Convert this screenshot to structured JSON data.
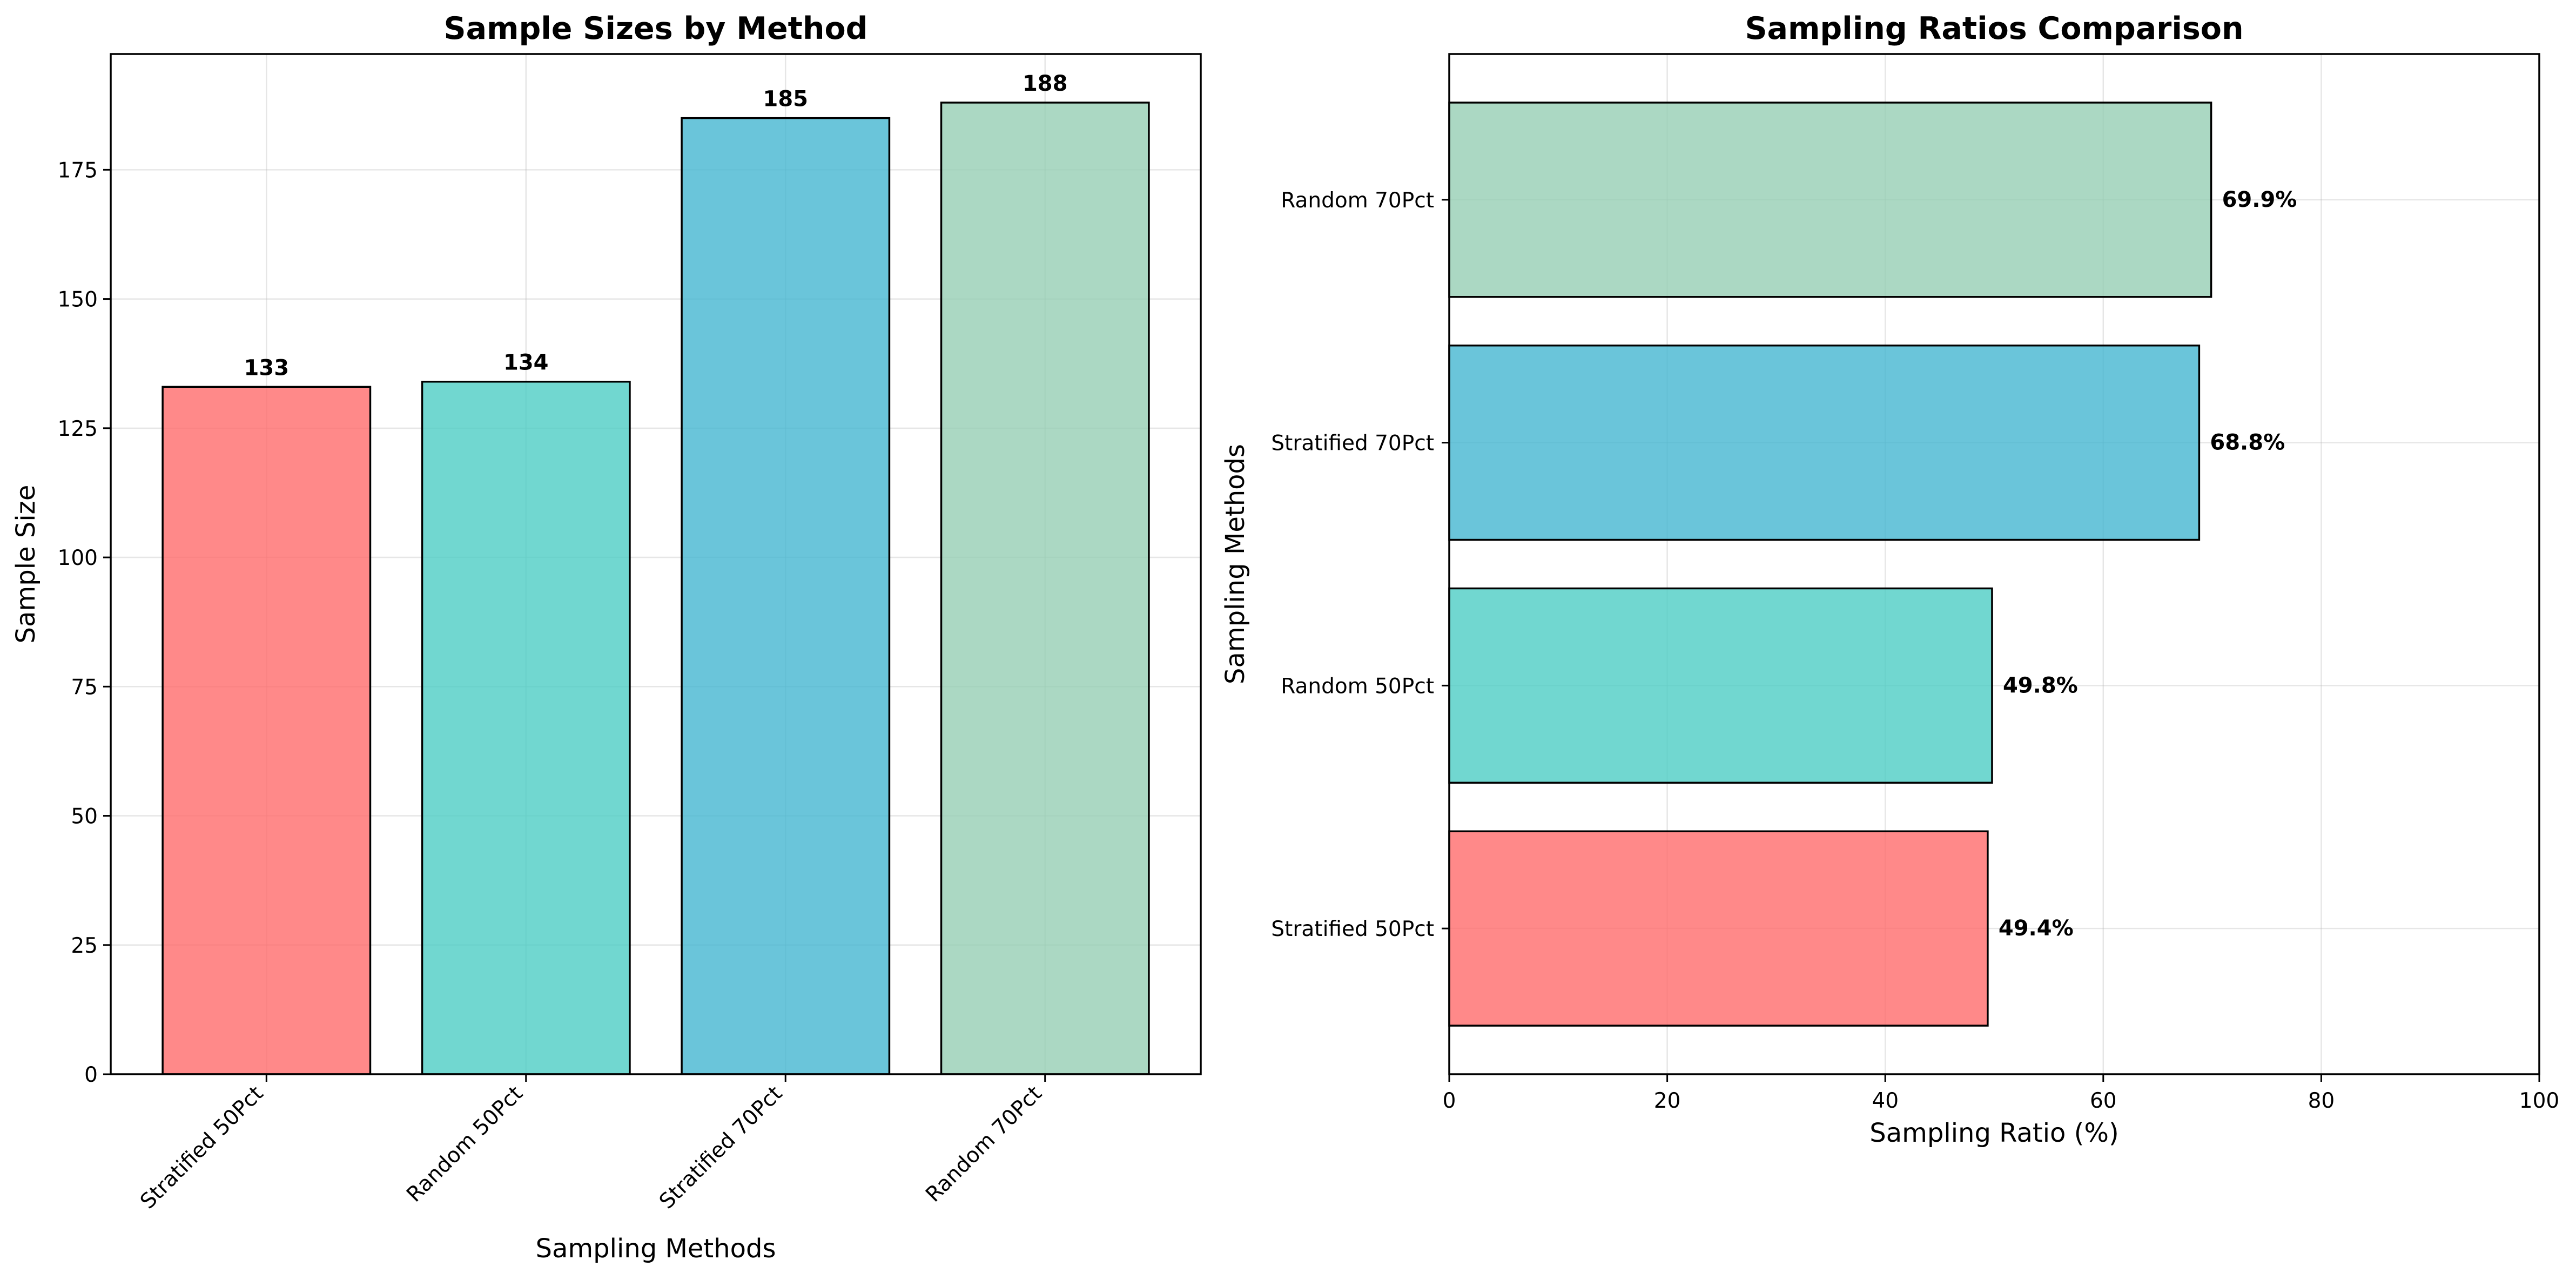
{
  "chart_data": [
    {
      "type": "bar",
      "title": "Sample Sizes by Method",
      "xlabel": "Sampling Methods",
      "ylabel": "Sample Size",
      "categories": [
        "Stratified 50Pct",
        "Random 50Pct",
        "Stratified 70Pct",
        "Random 70Pct"
      ],
      "values": [
        133,
        134,
        185,
        188
      ],
      "value_labels": [
        "133",
        "134",
        "185",
        "188"
      ],
      "colors": [
        "#FF6B6B",
        "#4ECDC4",
        "#45B7D1",
        "#96CEB4"
      ],
      "bar_opacity": 0.8,
      "ylim": [
        0,
        197.4
      ],
      "yticks": [
        0,
        25,
        50,
        75,
        100,
        125,
        150,
        175
      ],
      "ytick_labels": [
        "0",
        "25",
        "50",
        "75",
        "100",
        "125",
        "150",
        "175"
      ],
      "grid": true
    },
    {
      "type": "bar",
      "orientation": "horizontal",
      "title": "Sampling Ratios Comparison",
      "xlabel": "Sampling Ratio (%)",
      "ylabel": "Sampling Methods",
      "categories": [
        "Stratified 50Pct",
        "Random 50Pct",
        "Stratified 70Pct",
        "Random 70Pct"
      ],
      "values": [
        49.4,
        49.8,
        68.8,
        69.9
      ],
      "value_labels": [
        "49.4%",
        "49.8%",
        "68.8%",
        "69.9%"
      ],
      "colors": [
        "#FF6B6B",
        "#4ECDC4",
        "#45B7D1",
        "#96CEB4"
      ],
      "bar_opacity": 0.8,
      "xlim": [
        0,
        100
      ],
      "xticks": [
        0,
        20,
        40,
        60,
        80,
        100
      ],
      "xtick_labels": [
        "0",
        "20",
        "40",
        "60",
        "80",
        "100"
      ],
      "grid": true
    }
  ]
}
